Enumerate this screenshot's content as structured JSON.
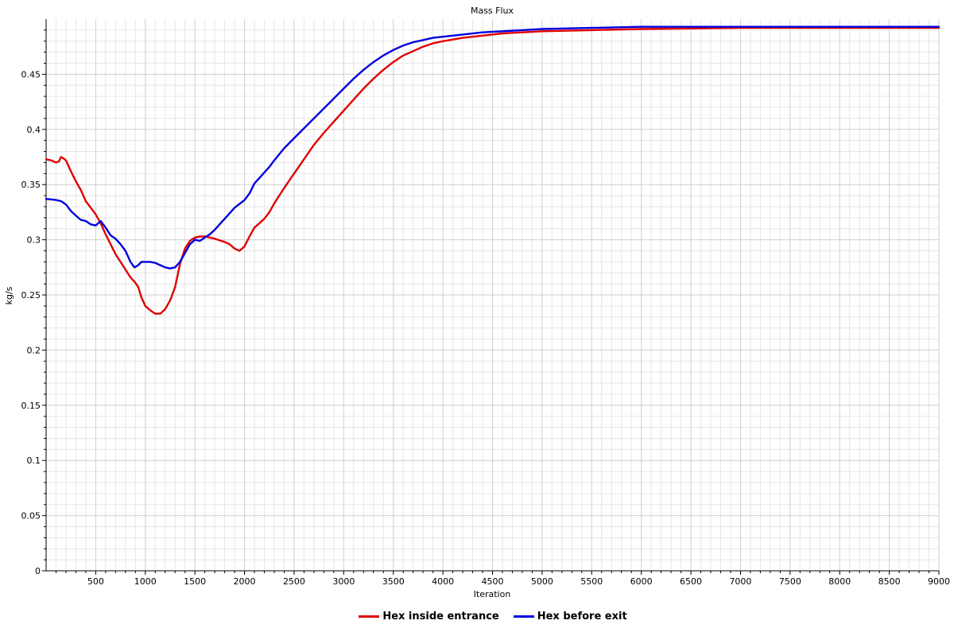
{
  "chart_data": {
    "type": "line",
    "title": "Mass Flux",
    "xlabel": "Iteration",
    "ylabel": "kg/s",
    "xlim": [
      0,
      9000
    ],
    "ylim": [
      0,
      0.5
    ],
    "x_ticks": [
      "500",
      "1000",
      "1500",
      "2000",
      "2500",
      "3000",
      "3500",
      "4000",
      "4500",
      "5000",
      "5500",
      "6000",
      "6500",
      "7000",
      "7500",
      "8000",
      "8500",
      "9000"
    ],
    "y_ticks": [
      "0",
      "0.05",
      "0.1",
      "0.15",
      "0.2",
      "0.25",
      "0.3",
      "0.35",
      "0.4",
      "0.45"
    ],
    "grid": true,
    "legend_position": "bottom",
    "series": [
      {
        "name": "Hex inside entrance",
        "color": "#e00000",
        "points": [
          [
            0,
            0.373
          ],
          [
            50,
            0.372
          ],
          [
            100,
            0.37
          ],
          [
            130,
            0.371
          ],
          [
            150,
            0.375
          ],
          [
            170,
            0.374
          ],
          [
            200,
            0.372
          ],
          [
            250,
            0.362
          ],
          [
            300,
            0.353
          ],
          [
            350,
            0.345
          ],
          [
            400,
            0.335
          ],
          [
            450,
            0.329
          ],
          [
            500,
            0.323
          ],
          [
            550,
            0.315
          ],
          [
            600,
            0.305
          ],
          [
            650,
            0.296
          ],
          [
            700,
            0.287
          ],
          [
            750,
            0.28
          ],
          [
            800,
            0.273
          ],
          [
            850,
            0.266
          ],
          [
            900,
            0.261
          ],
          [
            930,
            0.257
          ],
          [
            960,
            0.248
          ],
          [
            1000,
            0.24
          ],
          [
            1050,
            0.236
          ],
          [
            1100,
            0.233
          ],
          [
            1150,
            0.233
          ],
          [
            1200,
            0.237
          ],
          [
            1250,
            0.245
          ],
          [
            1300,
            0.257
          ],
          [
            1350,
            0.278
          ],
          [
            1400,
            0.292
          ],
          [
            1450,
            0.299
          ],
          [
            1500,
            0.302
          ],
          [
            1550,
            0.303
          ],
          [
            1600,
            0.303
          ],
          [
            1650,
            0.302
          ],
          [
            1700,
            0.301
          ],
          [
            1800,
            0.298
          ],
          [
            1850,
            0.296
          ],
          [
            1900,
            0.292
          ],
          [
            1950,
            0.29
          ],
          [
            2000,
            0.294
          ],
          [
            2050,
            0.303
          ],
          [
            2100,
            0.311
          ],
          [
            2150,
            0.315
          ],
          [
            2200,
            0.319
          ],
          [
            2250,
            0.325
          ],
          [
            2300,
            0.333
          ],
          [
            2400,
            0.347
          ],
          [
            2500,
            0.36
          ],
          [
            2600,
            0.373
          ],
          [
            2700,
            0.386
          ],
          [
            2800,
            0.397
          ],
          [
            2900,
            0.407
          ],
          [
            3000,
            0.417
          ],
          [
            3100,
            0.427
          ],
          [
            3200,
            0.437
          ],
          [
            3300,
            0.446
          ],
          [
            3400,
            0.454
          ],
          [
            3500,
            0.461
          ],
          [
            3600,
            0.467
          ],
          [
            3700,
            0.471
          ],
          [
            3800,
            0.475
          ],
          [
            3900,
            0.478
          ],
          [
            4000,
            0.48
          ],
          [
            4200,
            0.483
          ],
          [
            4400,
            0.485
          ],
          [
            4600,
            0.487
          ],
          [
            4800,
            0.488
          ],
          [
            5000,
            0.489
          ],
          [
            5500,
            0.49
          ],
          [
            6000,
            0.491
          ],
          [
            7000,
            0.492
          ],
          [
            8000,
            0.492
          ],
          [
            9000,
            0.492
          ]
        ]
      },
      {
        "name": "Hex before exit",
        "color": "#0000e0",
        "points": [
          [
            0,
            0.337
          ],
          [
            100,
            0.336
          ],
          [
            150,
            0.335
          ],
          [
            200,
            0.332
          ],
          [
            250,
            0.326
          ],
          [
            300,
            0.322
          ],
          [
            350,
            0.318
          ],
          [
            400,
            0.317
          ],
          [
            450,
            0.314
          ],
          [
            500,
            0.313
          ],
          [
            550,
            0.317
          ],
          [
            600,
            0.311
          ],
          [
            650,
            0.304
          ],
          [
            700,
            0.301
          ],
          [
            750,
            0.296
          ],
          [
            800,
            0.29
          ],
          [
            850,
            0.28
          ],
          [
            890,
            0.275
          ],
          [
            930,
            0.277
          ],
          [
            960,
            0.28
          ],
          [
            1000,
            0.28
          ],
          [
            1050,
            0.28
          ],
          [
            1100,
            0.279
          ],
          [
            1150,
            0.277
          ],
          [
            1200,
            0.275
          ],
          [
            1250,
            0.274
          ],
          [
            1300,
            0.275
          ],
          [
            1350,
            0.28
          ],
          [
            1400,
            0.288
          ],
          [
            1450,
            0.296
          ],
          [
            1500,
            0.3
          ],
          [
            1550,
            0.299
          ],
          [
            1600,
            0.302
          ],
          [
            1650,
            0.305
          ],
          [
            1700,
            0.309
          ],
          [
            1800,
            0.319
          ],
          [
            1900,
            0.329
          ],
          [
            2000,
            0.336
          ],
          [
            2050,
            0.342
          ],
          [
            2100,
            0.351
          ],
          [
            2150,
            0.356
          ],
          [
            2200,
            0.361
          ],
          [
            2250,
            0.366
          ],
          [
            2300,
            0.372
          ],
          [
            2400,
            0.383
          ],
          [
            2500,
            0.392
          ],
          [
            2600,
            0.401
          ],
          [
            2700,
            0.41
          ],
          [
            2800,
            0.419
          ],
          [
            2900,
            0.428
          ],
          [
            3000,
            0.437
          ],
          [
            3100,
            0.446
          ],
          [
            3200,
            0.454
          ],
          [
            3300,
            0.461
          ],
          [
            3400,
            0.467
          ],
          [
            3500,
            0.472
          ],
          [
            3600,
            0.476
          ],
          [
            3700,
            0.479
          ],
          [
            3800,
            0.481
          ],
          [
            3900,
            0.483
          ],
          [
            4000,
            0.484
          ],
          [
            4200,
            0.486
          ],
          [
            4400,
            0.488
          ],
          [
            4600,
            0.489
          ],
          [
            4800,
            0.49
          ],
          [
            5000,
            0.491
          ],
          [
            5500,
            0.492
          ],
          [
            6000,
            0.493
          ],
          [
            7000,
            0.493
          ],
          [
            8000,
            0.493
          ],
          [
            9000,
            0.493
          ]
        ]
      }
    ]
  }
}
